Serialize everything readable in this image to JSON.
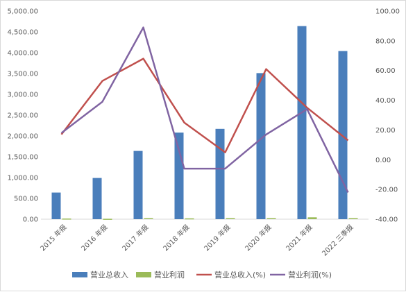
{
  "chart_data": {
    "type": "bar+line",
    "categories": [
      "2015 年报",
      "2016 年报",
      "2017 年报",
      "2018 年报",
      "2019 年报",
      "2020 年报",
      "2021 年报",
      "2022 三季报"
    ],
    "bar_series": [
      {
        "name": "营业总收入",
        "color": "#4a7ebb",
        "axis": "left",
        "values": [
          640,
          990,
          1640,
          2080,
          2170,
          3510,
          4640,
          4040
        ]
      },
      {
        "name": "营业利润",
        "color": "#9bbb59",
        "axis": "left",
        "values": [
          15,
          10,
          25,
          20,
          25,
          25,
          45,
          25
        ]
      }
    ],
    "line_series": [
      {
        "name": "营业总收入(%)",
        "color": "#c0504d",
        "axis": "right",
        "values": [
          17,
          53,
          68,
          25,
          5,
          61,
          35,
          13
        ]
      },
      {
        "name": "营业利润(%)",
        "color": "#8064a2",
        "axis": "right",
        "values": [
          18,
          39,
          89,
          -6,
          -6,
          17,
          34,
          -22
        ]
      }
    ],
    "left_axis": {
      "min": 0,
      "max": 5000,
      "step": 500,
      "tick_labels": [
        "0.00",
        "500.00",
        "1,000.00",
        "1,500.00",
        "2,000.00",
        "2,500.00",
        "3,000.00",
        "3,500.00",
        "4,000.00",
        "4,500.00",
        "5,000.00"
      ]
    },
    "right_axis": {
      "min": -40,
      "max": 100,
      "step": 20,
      "tick_labels": [
        "-40.00",
        "-20.00",
        "0.00",
        "20.00",
        "40.00",
        "60.00",
        "80.00",
        "100.00"
      ]
    },
    "grid": false,
    "legend_position": "bottom",
    "title": "",
    "xlabel": "",
    "ylabel": ""
  }
}
